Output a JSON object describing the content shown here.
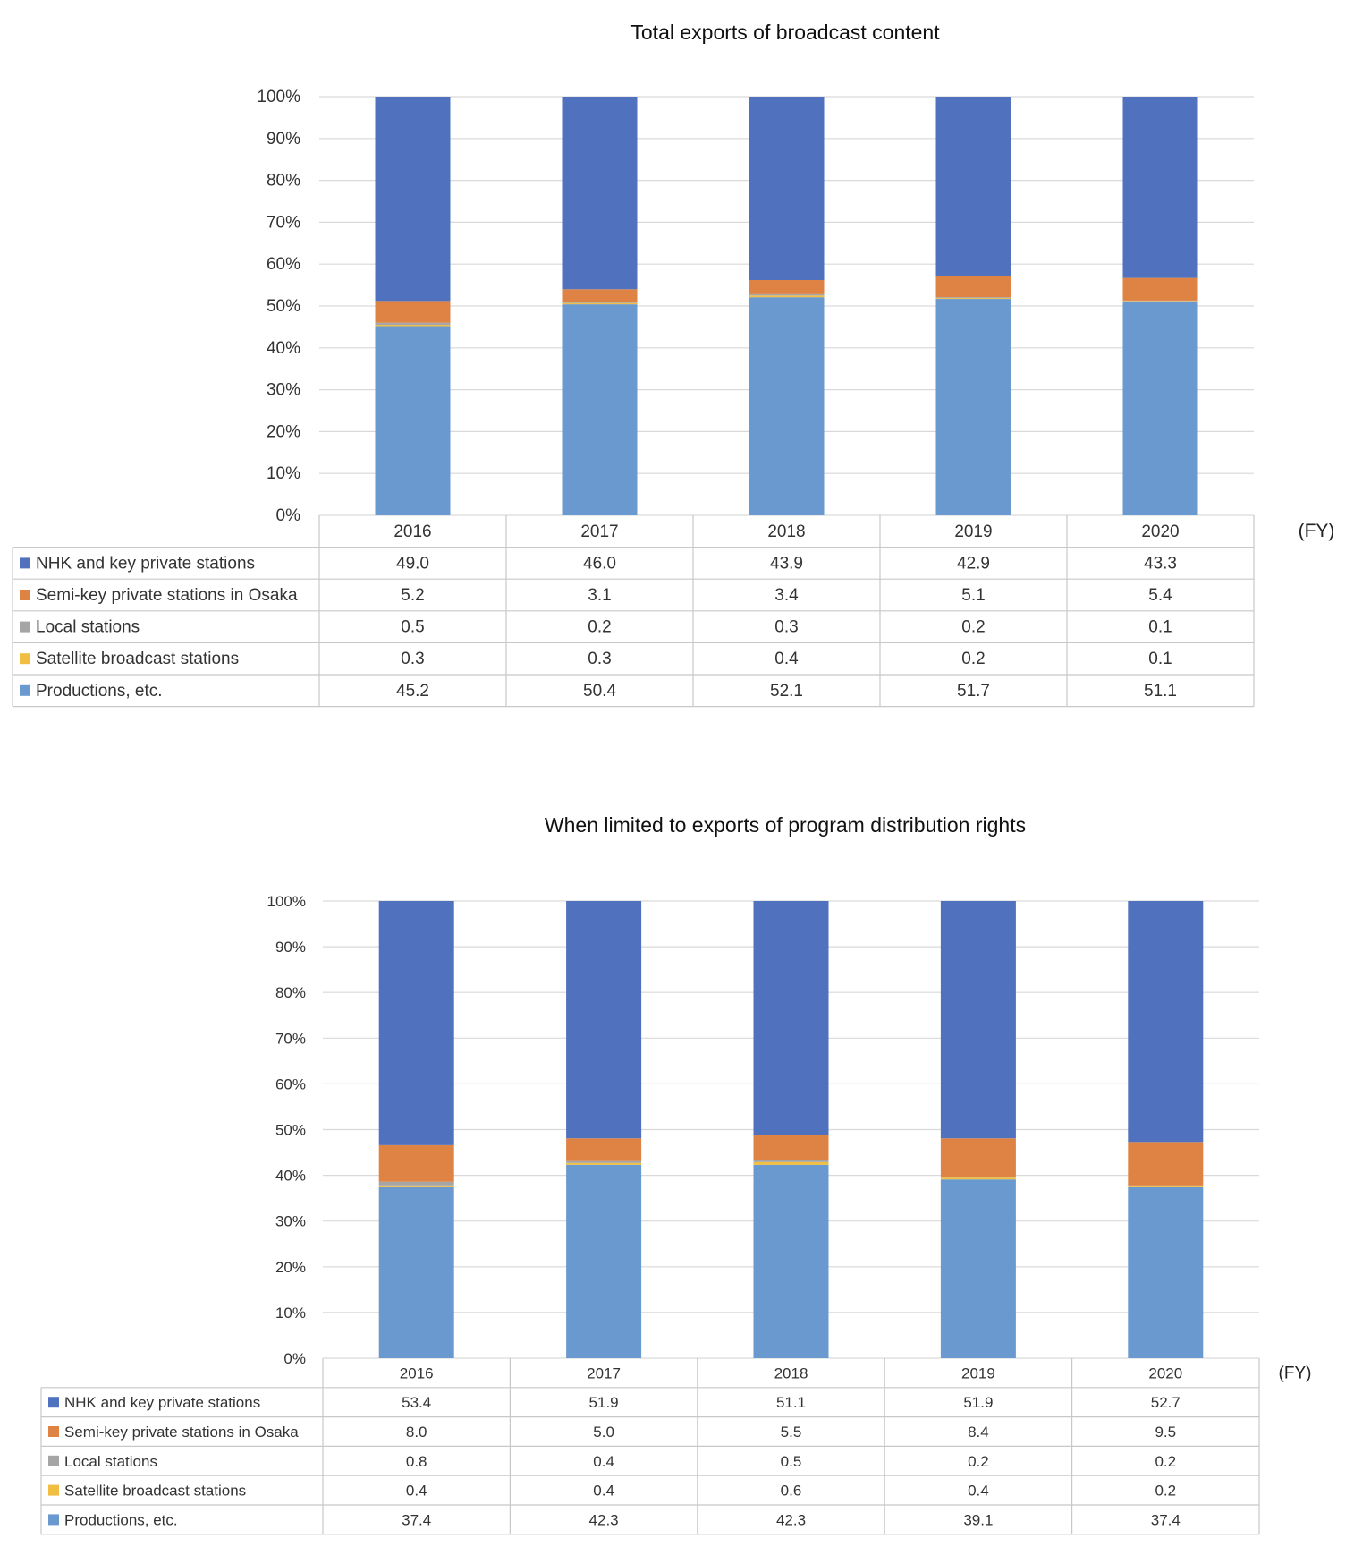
{
  "x_unit": "(FY)",
  "colors": {
    "nhk": "#4F71BE",
    "semikey": "#DE8344",
    "local": "#A5A5A5",
    "satellite": "#F1BE41",
    "productions": "#6A99D0"
  },
  "chart_data": [
    {
      "type": "bar",
      "stacked": true,
      "title": "Total exports of broadcast content",
      "categories": [
        "2016",
        "2017",
        "2018",
        "2019",
        "2020"
      ],
      "y_ticks": [
        "0%",
        "10%",
        "20%",
        "30%",
        "40%",
        "50%",
        "60%",
        "70%",
        "80%",
        "90%",
        "100%"
      ],
      "ylim": [
        0,
        100
      ],
      "grid": true,
      "legend": "data-table",
      "series": [
        {
          "name": "NHK and key private stations",
          "color_key": "nhk",
          "values": [
            49.0,
            46.0,
            43.9,
            42.9,
            43.3
          ],
          "labels": [
            "49.0",
            "46.0",
            "43.9",
            "42.9",
            "43.3"
          ]
        },
        {
          "name": "Semi-key private stations in Osaka",
          "color_key": "semikey",
          "values": [
            5.2,
            3.1,
            3.4,
            5.1,
            5.4
          ],
          "labels": [
            "5.2",
            "3.1",
            "3.4",
            "5.1",
            "5.4"
          ]
        },
        {
          "name": "Local stations",
          "color_key": "local",
          "values": [
            0.5,
            0.2,
            0.3,
            0.2,
            0.1
          ],
          "labels": [
            "0.5",
            "0.2",
            "0.3",
            "0.2",
            "0.1"
          ]
        },
        {
          "name": "Satellite broadcast stations",
          "color_key": "satellite",
          "values": [
            0.3,
            0.3,
            0.4,
            0.2,
            0.1
          ],
          "labels": [
            "0.3",
            "0.3",
            "0.4",
            "0.2",
            "0.1"
          ]
        },
        {
          "name": "Productions, etc.",
          "color_key": "productions",
          "values": [
            45.2,
            50.4,
            52.1,
            51.7,
            51.1
          ],
          "labels": [
            "45.2",
            "50.4",
            "52.1",
            "51.7",
            "51.1"
          ]
        }
      ]
    },
    {
      "type": "bar",
      "stacked": true,
      "title": "When limited to exports of program distribution rights",
      "categories": [
        "2016",
        "2017",
        "2018",
        "2019",
        "2020"
      ],
      "y_ticks": [
        "0%",
        "10%",
        "20%",
        "30%",
        "40%",
        "50%",
        "60%",
        "70%",
        "80%",
        "90%",
        "100%"
      ],
      "ylim": [
        0,
        100
      ],
      "grid": true,
      "legend": "data-table",
      "series": [
        {
          "name": "NHK and key private stations",
          "color_key": "nhk",
          "values": [
            53.4,
            51.9,
            51.1,
            51.9,
            52.7
          ],
          "labels": [
            "53.4",
            "51.9",
            "51.1",
            "51.9",
            "52.7"
          ]
        },
        {
          "name": "Semi-key private stations in Osaka",
          "color_key": "semikey",
          "values": [
            8.0,
            5.0,
            5.5,
            8.4,
            9.5
          ],
          "labels": [
            "8.0",
            "5.0",
            "5.5",
            "8.4",
            "9.5"
          ]
        },
        {
          "name": "Local stations",
          "color_key": "local",
          "values": [
            0.8,
            0.4,
            0.5,
            0.2,
            0.2
          ],
          "labels": [
            "0.8",
            "0.4",
            "0.5",
            "0.2",
            "0.2"
          ]
        },
        {
          "name": "Satellite broadcast stations",
          "color_key": "satellite",
          "values": [
            0.4,
            0.4,
            0.6,
            0.4,
            0.2
          ],
          "labels": [
            "0.4",
            "0.4",
            "0.6",
            "0.4",
            "0.2"
          ]
        },
        {
          "name": "Productions, etc.",
          "color_key": "productions",
          "values": [
            37.4,
            42.3,
            42.3,
            39.1,
            37.4
          ],
          "labels": [
            "37.4",
            "42.3",
            "42.3",
            "39.1",
            "37.4"
          ]
        }
      ]
    }
  ]
}
